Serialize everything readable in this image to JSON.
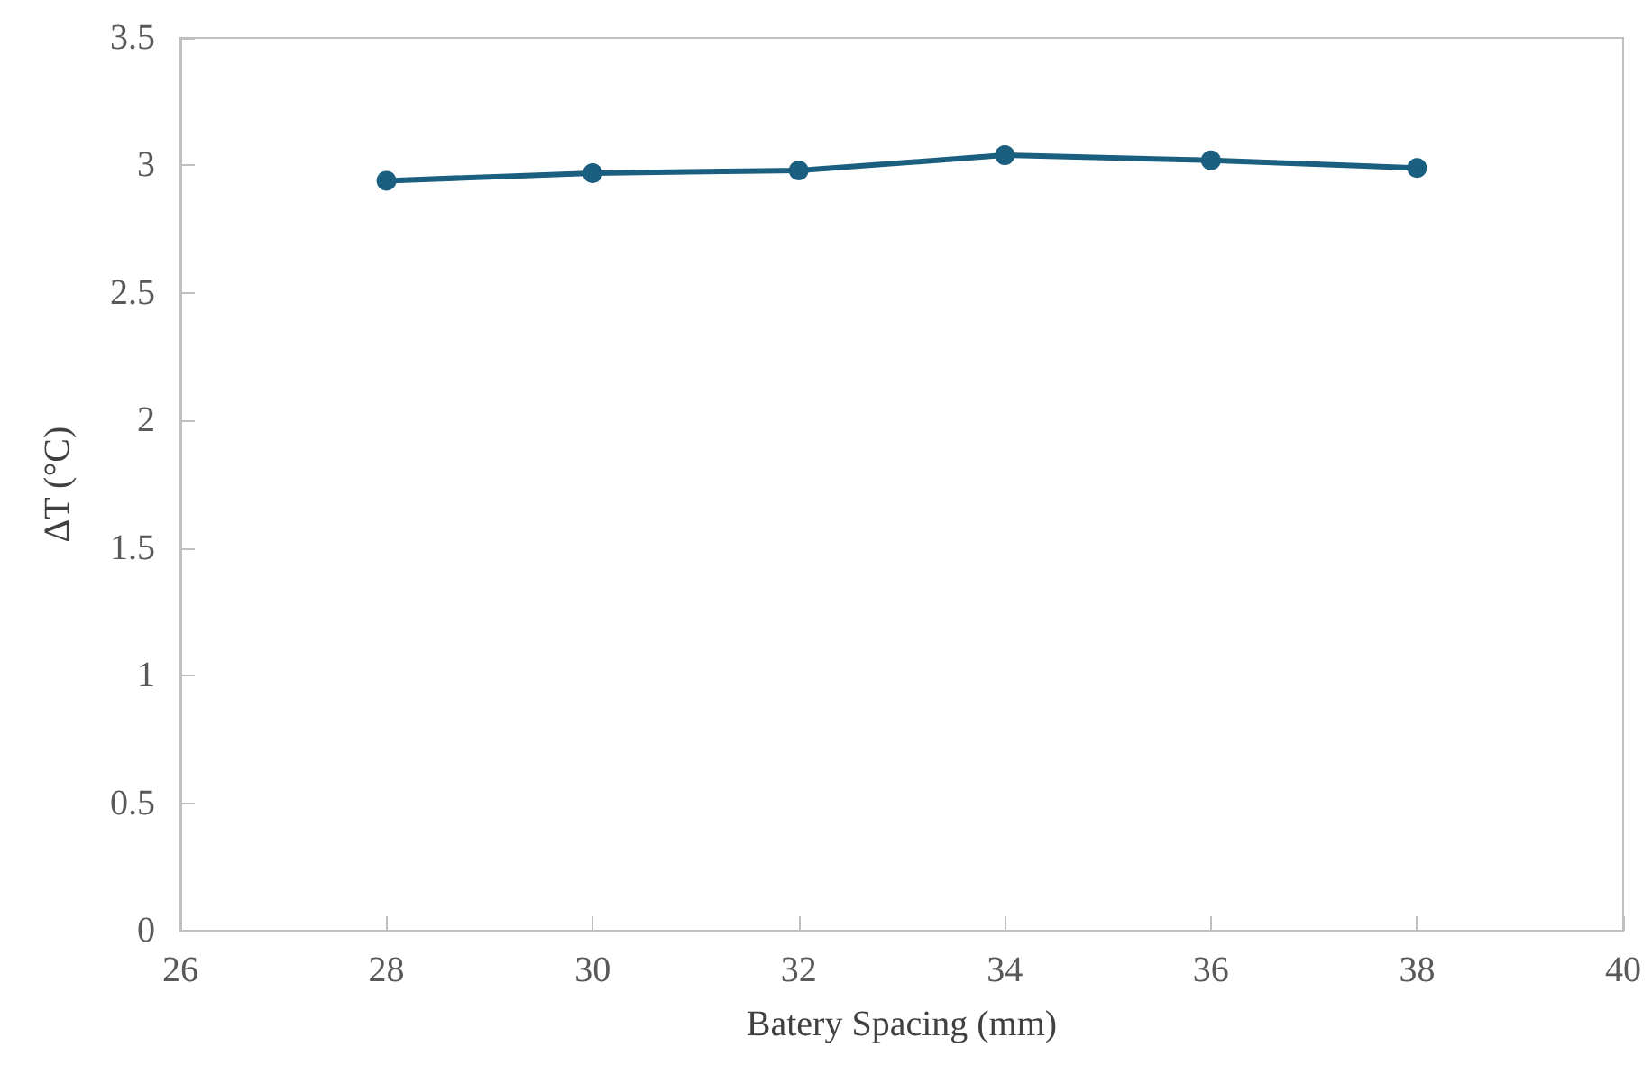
{
  "chart_data": {
    "type": "line",
    "xlabel": "Batery Spacing (mm)",
    "ylabel": "ΔT (°C)",
    "x": [
      28,
      30,
      32,
      34,
      36,
      38
    ],
    "series": [
      {
        "color": "#1a5e80",
        "values": [
          2.94,
          2.97,
          2.98,
          3.04,
          3.02,
          2.99
        ]
      }
    ],
    "xlim": [
      26,
      40
    ],
    "xticks": [
      26,
      28,
      30,
      32,
      34,
      36,
      38,
      40
    ],
    "ylim": [
      0,
      3.5
    ],
    "yticks": [
      0,
      0.5,
      1,
      1.5,
      2,
      2.5,
      3,
      3.5
    ],
    "grid": false,
    "marker": "circle",
    "line_style": "solid"
  }
}
